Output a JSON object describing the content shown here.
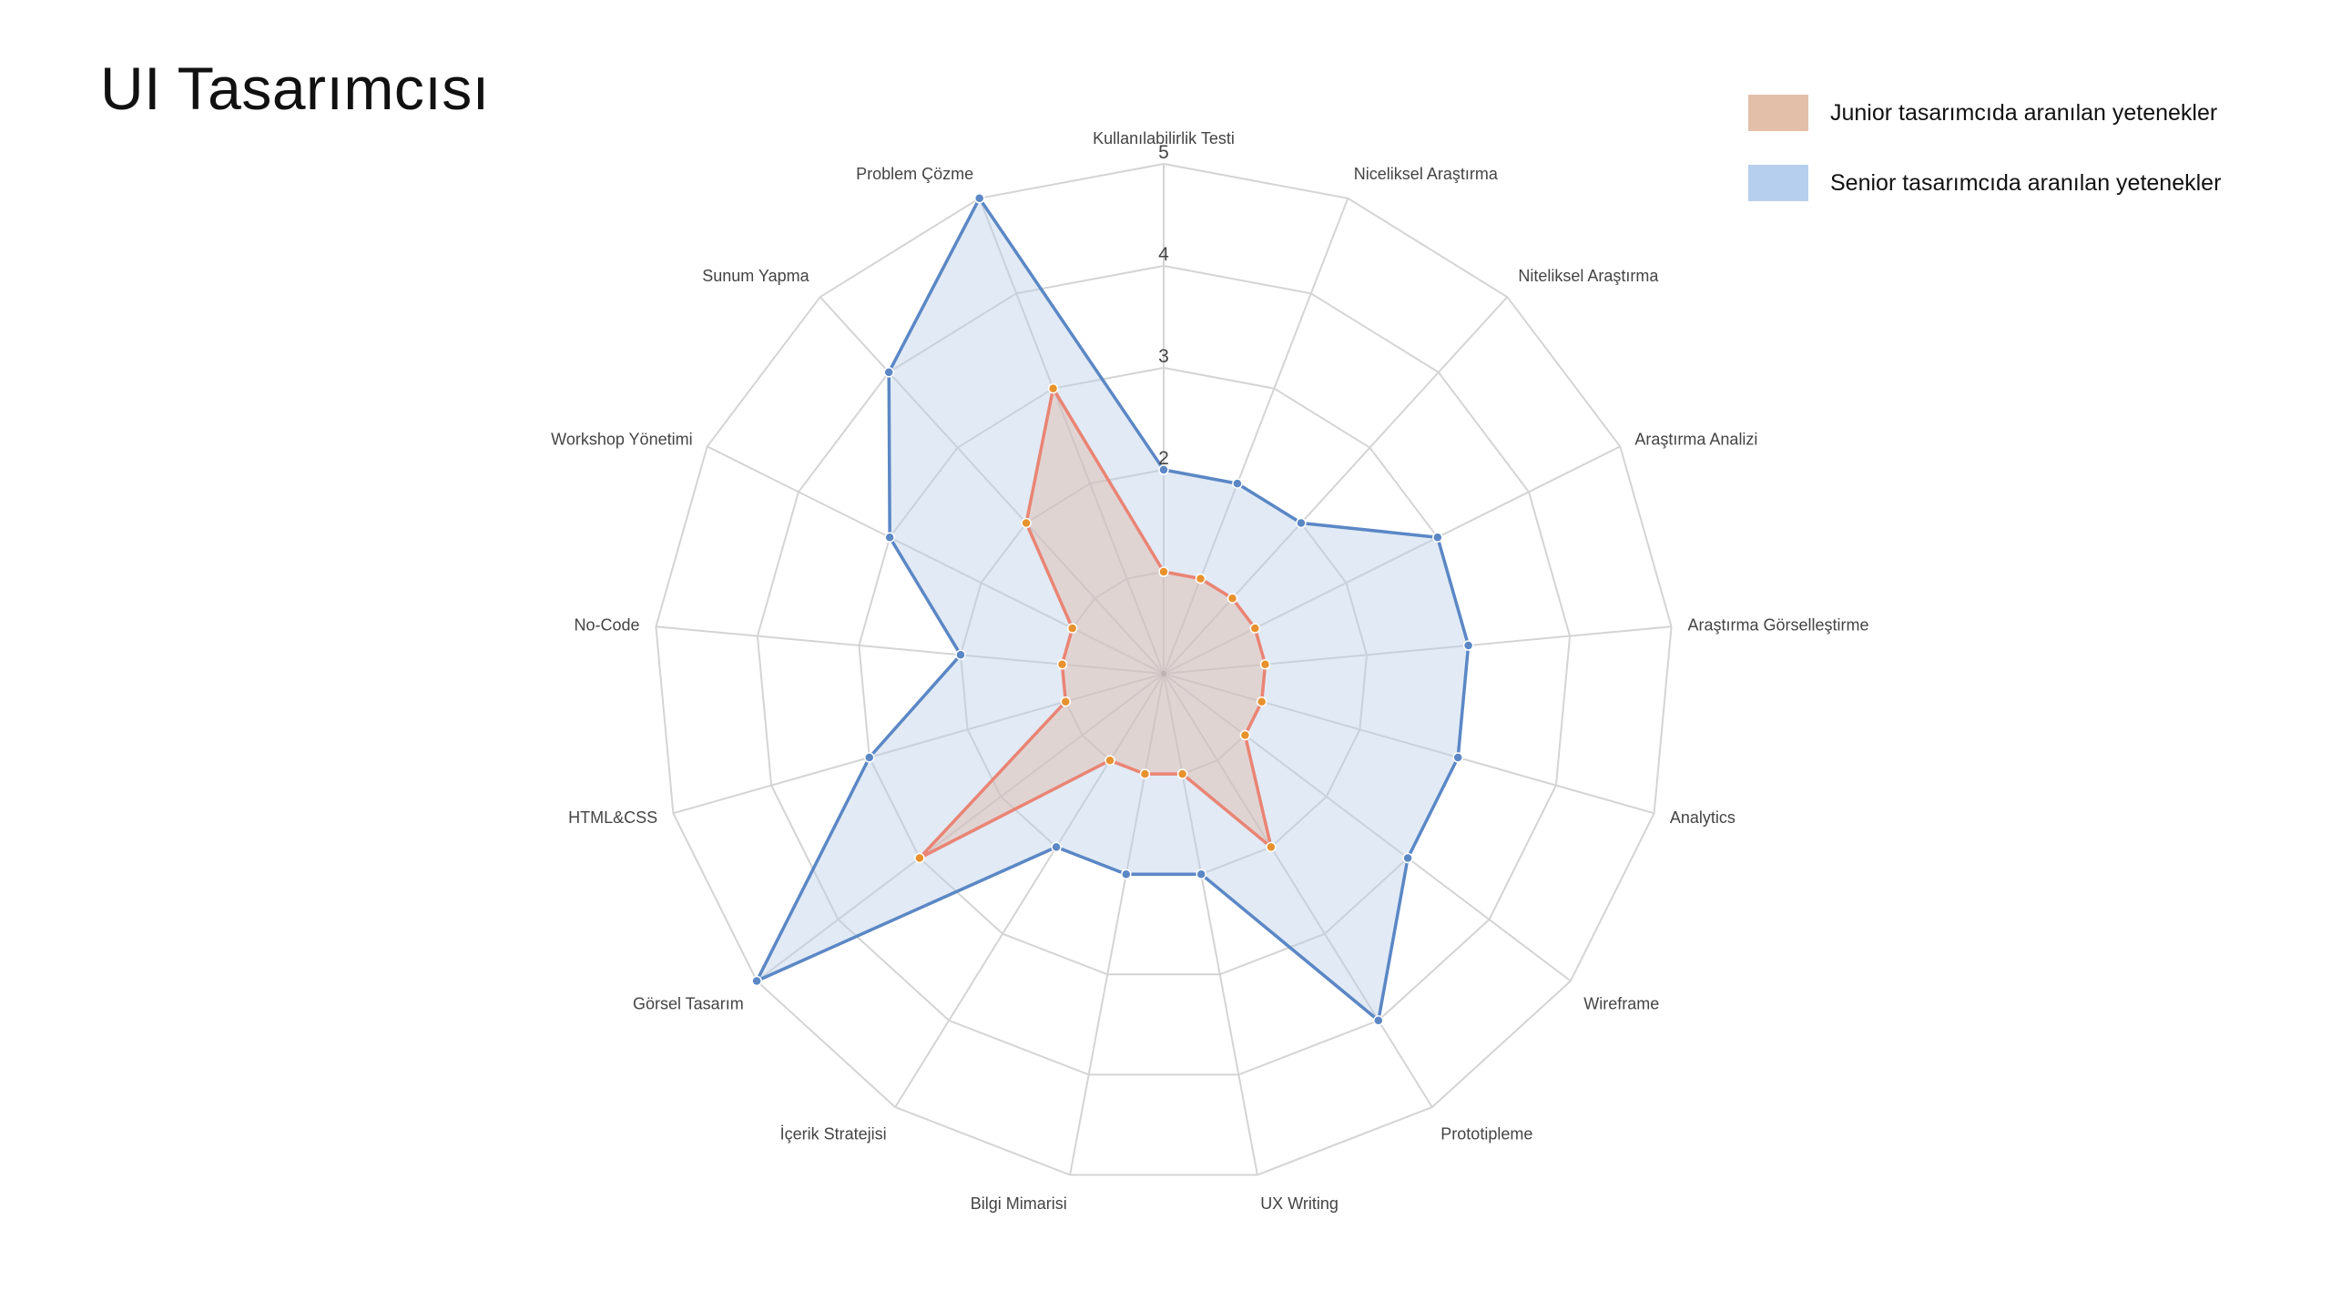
{
  "page": {
    "title": "UI Tasarımcısı"
  },
  "legend": {
    "items": [
      {
        "label": "Junior tasarımcıda aranılan yetenekler",
        "color": "#e3bfaa"
      },
      {
        "label": "Senior tasarımcıda aranılan yetenekler",
        "color": "#b7cfee"
      }
    ]
  },
  "chart_data": {
    "type": "radar",
    "title": "",
    "categories": [
      "Kullanılabilirlik Testi",
      "Niceliksel Araştırma",
      "Niteliksel Araştırma",
      "Araştırma Analizi",
      "Araştırma Görselleştirme",
      "Analytics",
      "Wireframe",
      "Prototipleme",
      "UX Writing",
      "Bilgi Mimarisi",
      "İçerik Stratejisi",
      "Görsel Tasarım",
      "HTML&CSS",
      "No-Code",
      "Workshop Yönetimi",
      "Sunum Yapma",
      "Problem Çözme"
    ],
    "range": [
      0,
      5
    ],
    "ticks": [
      2,
      3,
      4,
      5
    ],
    "grid": true,
    "legend_position": "top-right",
    "series": [
      {
        "name": "Senior tasarımcıda aranılan yetenekler",
        "values": [
          2,
          2,
          2,
          3,
          3,
          3,
          3,
          4,
          2,
          2,
          2,
          5,
          3,
          2,
          3,
          4,
          5
        ],
        "line_color": "#5b87c5",
        "fill_color": "#b7cde8"
      },
      {
        "name": "Junior tasarımcıda aranılan yetenekler",
        "values": [
          1,
          1,
          1,
          1,
          1,
          1,
          1,
          2,
          1,
          1,
          1,
          3,
          1,
          1,
          1,
          2,
          3
        ],
        "line_color": "#ea8474",
        "fill_color": "#dfb6a4",
        "point_color": "#e8922e"
      }
    ]
  }
}
